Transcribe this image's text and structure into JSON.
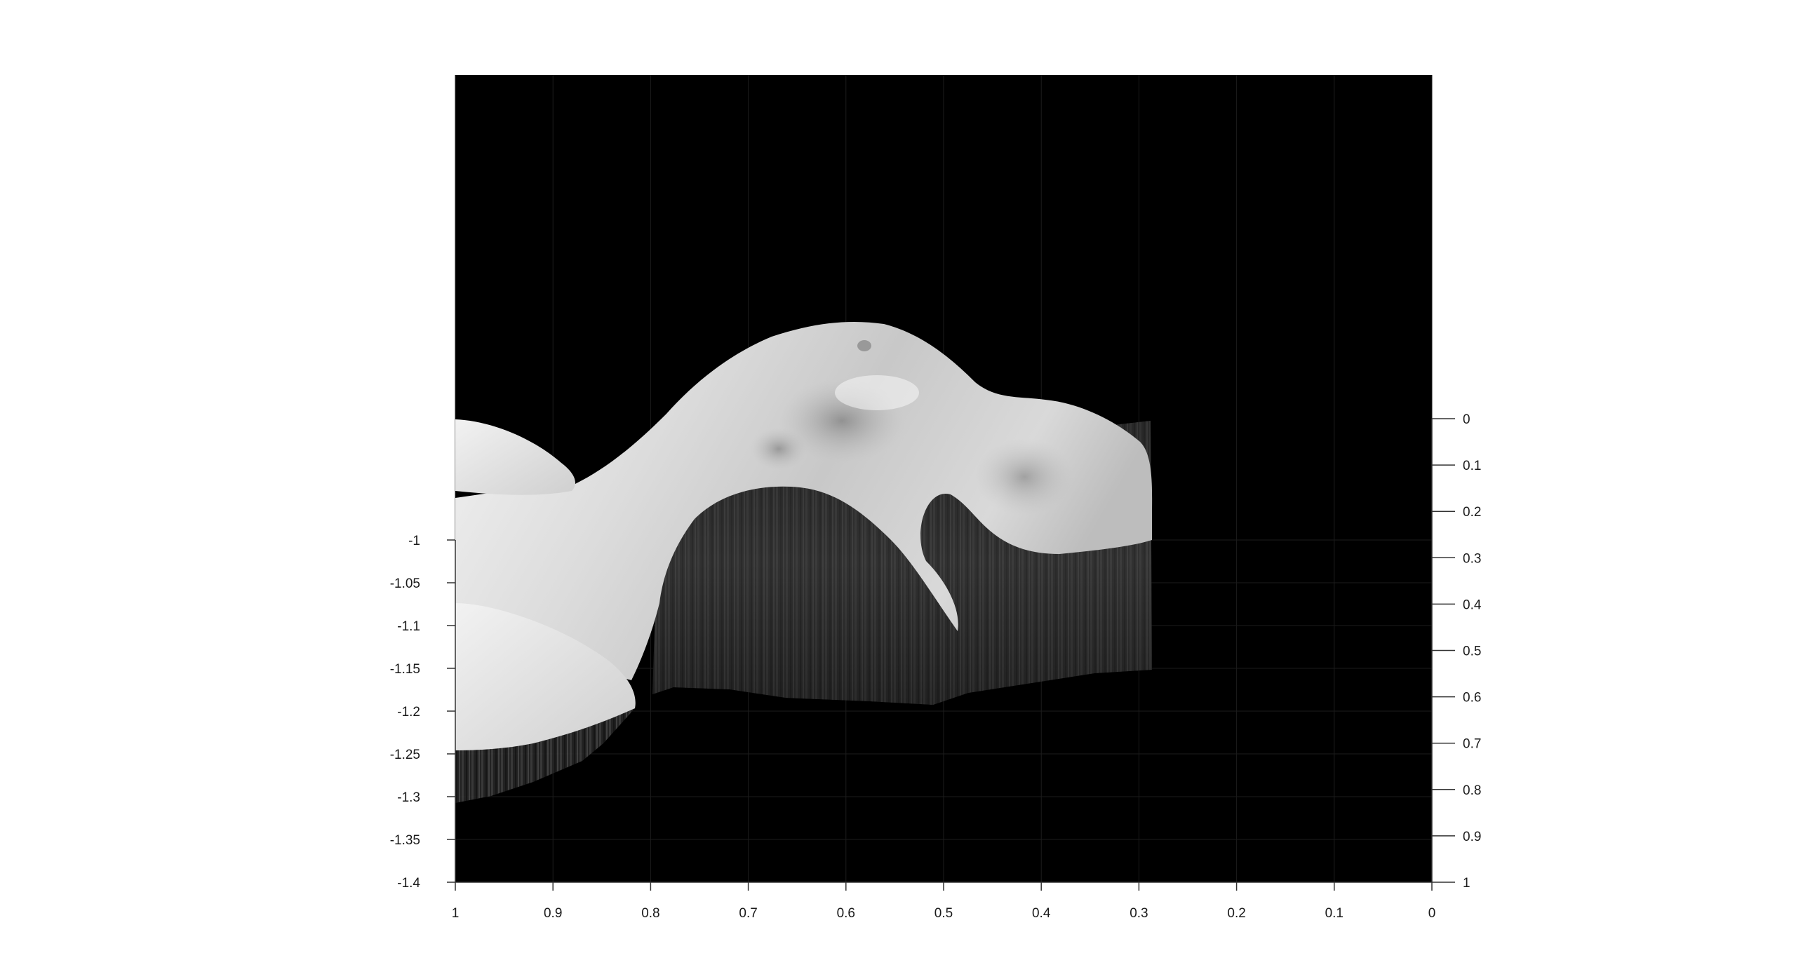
{
  "chart_data": {
    "type": "surface",
    "title": "",
    "xlabel": "",
    "ylabel": "",
    "zlabel": "",
    "background_color": "#000000",
    "surface_colormap": "gray",
    "grid": true,
    "x_axis": {
      "position": "bottom",
      "reversed": true,
      "range": [
        1,
        0
      ],
      "ticks": [
        1,
        0.9,
        0.8,
        0.7,
        0.6,
        0.5,
        0.4,
        0.3,
        0.2,
        0.1,
        0
      ],
      "tick_labels": [
        "1",
        "0.9",
        "0.8",
        "0.7",
        "0.6",
        "0.5",
        "0.4",
        "0.3",
        "0.2",
        "0.1",
        "0"
      ]
    },
    "z_axis": {
      "position": "left",
      "range": [
        -1.4,
        -1
      ],
      "ticks": [
        -1,
        -1.05,
        -1.1,
        -1.15,
        -1.2,
        -1.25,
        -1.3,
        -1.35,
        -1.4
      ],
      "tick_labels": [
        "-1",
        "-1.05",
        "-1.1",
        "-1.15",
        "-1.2",
        "-1.25",
        "-1.3",
        "-1.35",
        "-1.4"
      ]
    },
    "y_axis": {
      "position": "right",
      "range": [
        0,
        1
      ],
      "ticks": [
        0,
        0.1,
        0.2,
        0.3,
        0.4,
        0.5,
        0.6,
        0.7,
        0.8,
        0.9,
        1
      ],
      "tick_labels": [
        "0",
        "0.1",
        "0.2",
        "0.3",
        "0.4",
        "0.5",
        "0.6",
        "0.7",
        "0.8",
        "0.9",
        "1"
      ]
    }
  }
}
